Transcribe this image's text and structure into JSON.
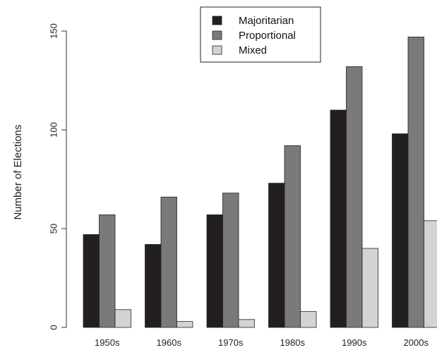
{
  "chart_data": {
    "type": "bar",
    "title": "",
    "xlabel": "",
    "ylabel": "Number of Elections",
    "categories": [
      "1950s",
      "1960s",
      "1970s",
      "1980s",
      "1990s",
      "2000s"
    ],
    "series": [
      {
        "name": "Majoritarian",
        "color": "#231f20",
        "values": [
          47,
          42,
          57,
          73,
          110,
          98
        ]
      },
      {
        "name": "Proportional",
        "color": "#7a7a7a",
        "values": [
          57,
          66,
          68,
          92,
          132,
          147
        ]
      },
      {
        "name": "Mixed",
        "color": "#d3d3d3",
        "values": [
          9,
          3,
          4,
          8,
          40,
          54
        ]
      }
    ],
    "ylim": [
      0,
      150
    ],
    "yticks": [
      "0",
      "50",
      "100",
      "150"
    ],
    "grid": false,
    "legend_position": "top-center"
  }
}
